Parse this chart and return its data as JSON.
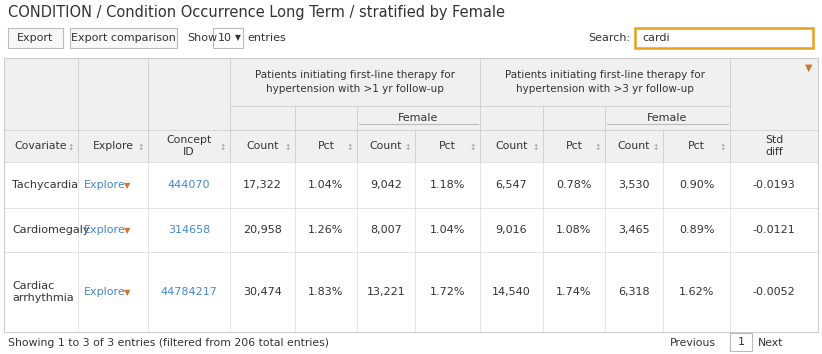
{
  "title": "CONDITION / Condition Occurrence Long Term / stratified by Female",
  "export_btn": "Export",
  "export_comparison_btn": "Export comparison",
  "show_label": "Show",
  "show_value": "10",
  "entries_label": "entries",
  "search_label": "Search:",
  "search_value": "cardi",
  "grp1_header": "Patients initiating first-line therapy for\nhypertension with >1 yr follow-up",
  "grp2_header": "Patients initiating first-line therapy for\nhypertension with >3 yr follow-up",
  "rows": [
    [
      "Tachycardia",
      "Explore",
      "444070",
      "17,322",
      "1.04%",
      "9,042",
      "1.18%",
      "6,547",
      "0.78%",
      "3,530",
      "0.90%",
      "-0.0193"
    ],
    [
      "Cardiomegaly",
      "Explore",
      "314658",
      "20,958",
      "1.26%",
      "8,007",
      "1.04%",
      "9,016",
      "1.08%",
      "3,465",
      "0.89%",
      "-0.0121"
    ],
    [
      "Cardiac\narrhythmia",
      "Explore",
      "44784217",
      "30,474",
      "1.83%",
      "13,221",
      "1.72%",
      "14,540",
      "1.74%",
      "6,318",
      "1.62%",
      "-0.0052"
    ]
  ],
  "footer": "Showing 1 to 3 of 3 entries (filtered from 206 total entries)",
  "bg_color": "#ffffff",
  "header_bg": "#f0f0f0",
  "border_color": "#cccccc",
  "row_border": "#e0e0e0",
  "text_color": "#333333",
  "blue_link": "#4488cc",
  "orange_color": "#cc7733",
  "search_border": "#e8a020",
  "title_fs": 10.5,
  "header_fs": 7.5,
  "body_fs": 8.0,
  "small_fs": 7.0
}
